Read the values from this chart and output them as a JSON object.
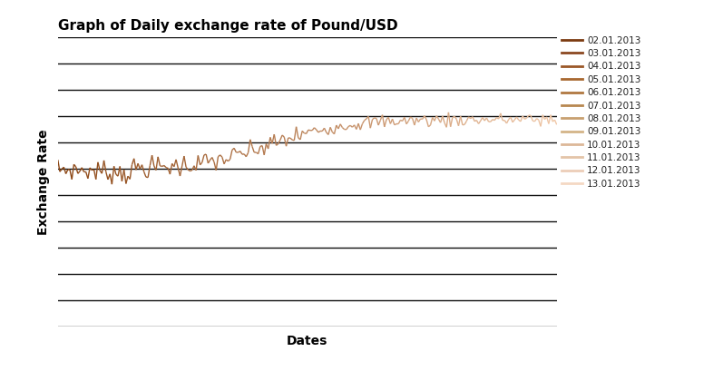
{
  "title": "Graph of Daily exchange rate of Pound/USD",
  "xlabel": "Dates",
  "ylabel": "Exchange Rate",
  "background_color": "#ffffff",
  "title_fontsize": 11,
  "axis_label_fontsize": 10,
  "legend_labels": [
    "02.01.2013",
    "03.01.2013",
    "04.01.2013",
    "05.01.2013",
    "06.01.2013",
    "07.01.2013",
    "08.01.2013",
    "09.01.2013",
    "10.01.2013",
    "11.01.2013",
    "12.01.2013",
    "13.01.2013"
  ],
  "legend_colors": [
    "#7B3A10",
    "#8B4820",
    "#9B5828",
    "#A86830",
    "#B07840",
    "#B88850",
    "#C8A070",
    "#D4B488",
    "#DCB898",
    "#E4C4A8",
    "#ECCDB8",
    "#F4D8C4"
  ],
  "line_color_start": "#8B4513",
  "line_color_end": "#F0C8A8",
  "ylim_data": [
    1.545,
    1.645
  ],
  "ylim_plot": [
    1.4,
    1.72
  ],
  "n_points": 250,
  "grid_color": "#111111",
  "grid_linewidth": 1.0,
  "n_gridlines": 10,
  "figsize": [
    7.97,
    4.09
  ],
  "dpi": 100
}
